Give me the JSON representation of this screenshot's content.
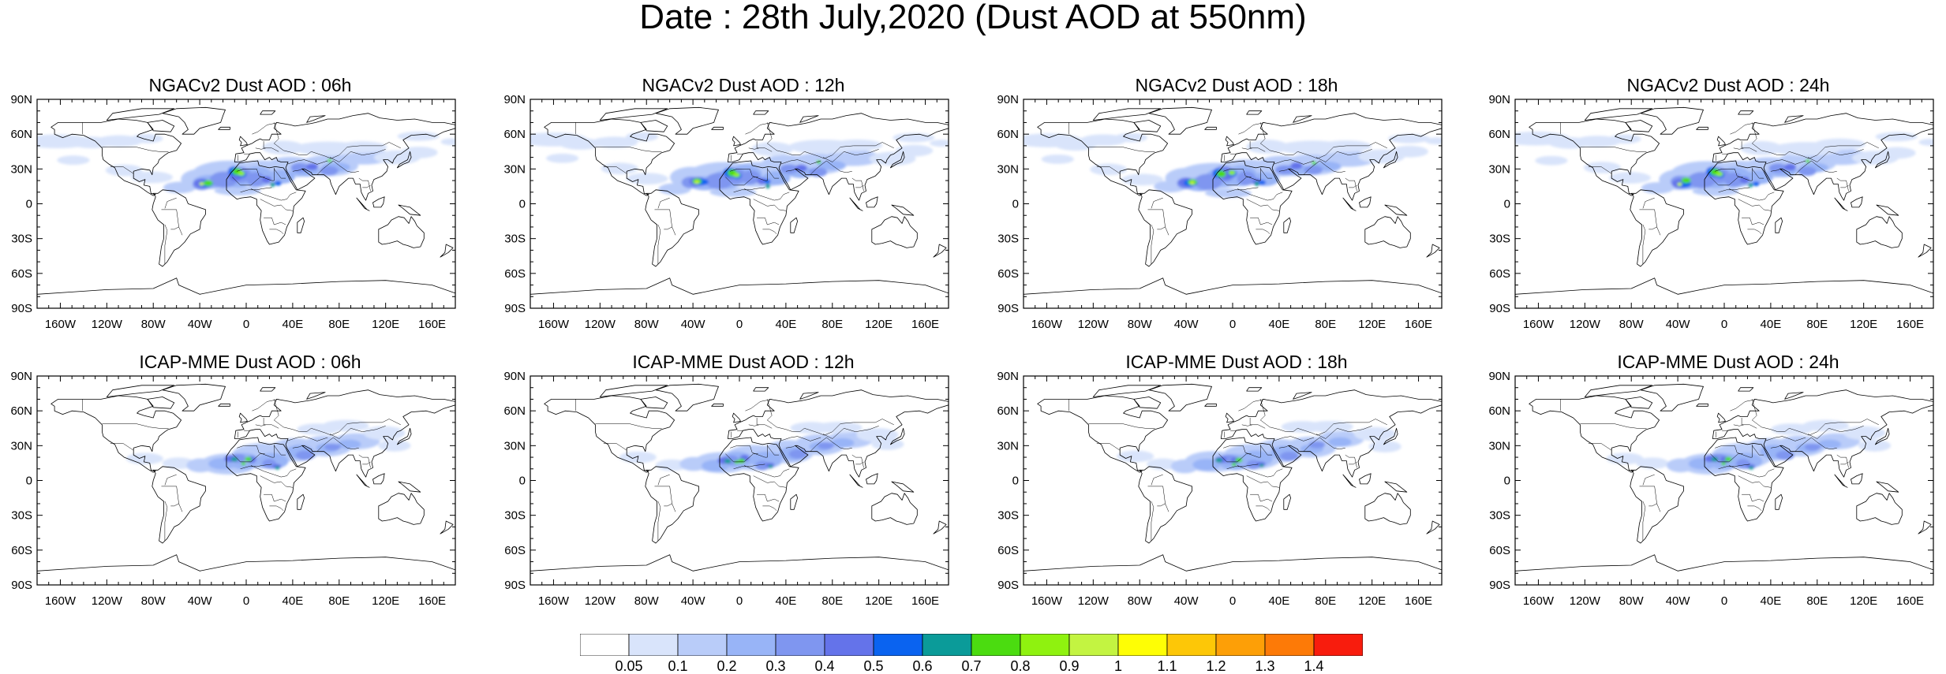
{
  "title": "Date : 28th July,2020 (Dust AOD at 550nm)",
  "panels": [
    {
      "title": "NGACv2 Dust AOD : 06h",
      "model": "NGACv2"
    },
    {
      "title": "NGACv2 Dust AOD : 12h",
      "model": "NGACv2"
    },
    {
      "title": "NGACv2 Dust AOD : 18h",
      "model": "NGACv2"
    },
    {
      "title": "NGACv2 Dust AOD : 24h",
      "model": "NGACv2"
    },
    {
      "title": "ICAP-MME Dust AOD : 06h",
      "model": "ICAP"
    },
    {
      "title": "ICAP-MME Dust AOD : 12h",
      "model": "ICAP"
    },
    {
      "title": "ICAP-MME Dust AOD : 18h",
      "model": "ICAP"
    },
    {
      "title": "ICAP-MME Dust AOD : 24h",
      "model": "ICAP"
    }
  ],
  "lat_ticks": [
    "90N",
    "60N",
    "30N",
    "0",
    "30S",
    "60S",
    "90S"
  ],
  "lon_ticks": [
    "160W",
    "120W",
    "80W",
    "40W",
    "0",
    "40E",
    "80E",
    "120E",
    "160E"
  ],
  "colorbar": {
    "labels": [
      "0.05",
      "0.1",
      "0.2",
      "0.3",
      "0.4",
      "0.5",
      "0.6",
      "0.7",
      "0.8",
      "0.9",
      "1",
      "1.1",
      "1.2",
      "1.3",
      "1.4"
    ],
    "colors": [
      "#ffffff",
      "#d9e4fb",
      "#b9ccf9",
      "#98b4f7",
      "#7f96f0",
      "#6473ea",
      "#0a63f0",
      "#0b9b99",
      "#4bdc10",
      "#8ff20f",
      "#c3f441",
      "#fefe05",
      "#fdc707",
      "#fd9f07",
      "#fd7a07",
      "#f81c0d"
    ]
  }
}
